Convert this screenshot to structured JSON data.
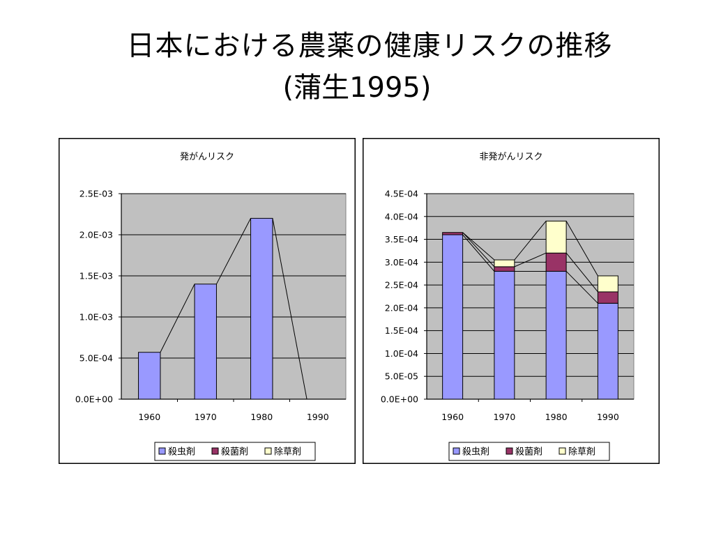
{
  "slide": {
    "title": "日本における農薬の健康リスクの推移",
    "subtitle": "(蒲生1995)"
  },
  "colors": {
    "insecticide": "#9999ff",
    "fungicide": "#993366",
    "herbicide": "#ffffcc",
    "plot_background": "#c0c0c0"
  },
  "chart_data": [
    {
      "type": "bar",
      "stacked": true,
      "title": "発がんリスク",
      "categories": [
        "1960",
        "1970",
        "1980",
        "1990"
      ],
      "series": [
        {
          "name": "殺虫剤",
          "values": [
            0.00057,
            0.0014,
            0.0022,
            0.0
          ]
        },
        {
          "name": "殺菌剤",
          "values": [
            0,
            0,
            0,
            0
          ]
        },
        {
          "name": "除草剤",
          "values": [
            0,
            0,
            0,
            0
          ]
        }
      ],
      "ylim": [
        0,
        0.0025
      ],
      "yticks": [
        "0.0E+00",
        "5.0E-04",
        "1.0E-03",
        "1.5E-03",
        "2.0E-03",
        "2.5E-03"
      ],
      "grid": true,
      "legend_position": "bottom",
      "series_lines": true
    },
    {
      "type": "bar",
      "stacked": true,
      "title": "非発がんリスク",
      "categories": [
        "1960",
        "1970",
        "1980",
        "1990"
      ],
      "series": [
        {
          "name": "殺虫剤",
          "values": [
            0.00036,
            0.00028,
            0.00028,
            0.00021
          ]
        },
        {
          "name": "殺菌剤",
          "values": [
            5e-06,
            1e-05,
            4e-05,
            2.5e-05
          ]
        },
        {
          "name": "除草剤",
          "values": [
            0.0,
            1.5e-05,
            7e-05,
            3.5e-05
          ]
        }
      ],
      "ylim": [
        0,
        0.00045
      ],
      "yticks": [
        "0.0E+00",
        "5.0E-05",
        "1.0E-04",
        "1.5E-04",
        "2.0E-04",
        "2.5E-04",
        "3.0E-04",
        "3.5E-04",
        "4.0E-04",
        "4.5E-04"
      ],
      "grid": true,
      "legend_position": "bottom",
      "series_lines": true
    }
  ]
}
